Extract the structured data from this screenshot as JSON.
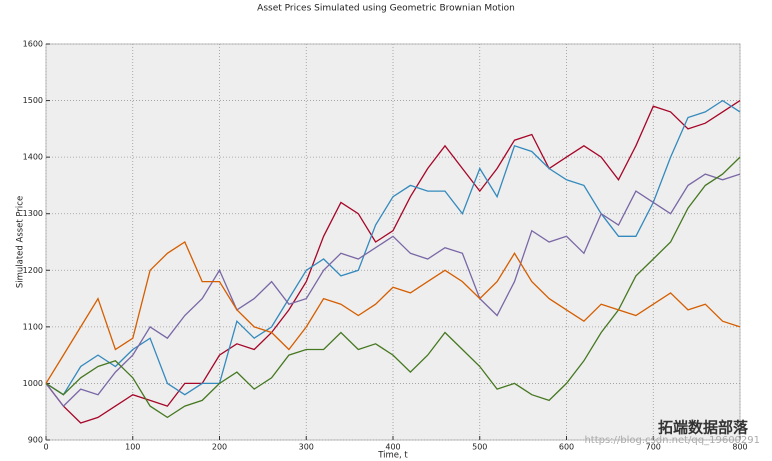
{
  "chart_data": {
    "type": "line",
    "title": "Asset Prices Simulated using Geometric Brownian Motion",
    "xlabel": "Time, t",
    "ylabel": "Simulated Asset Price",
    "annotations": [
      "https://blog.csdn.net/qq_19600291",
      "拓端数据部落"
    ],
    "x": [
      0,
      20,
      40,
      60,
      80,
      100,
      120,
      140,
      160,
      180,
      200,
      220,
      240,
      260,
      280,
      300,
      320,
      340,
      360,
      380,
      400,
      420,
      440,
      460,
      480,
      500,
      520,
      540,
      560,
      580,
      600,
      620,
      640,
      660,
      680,
      700,
      720,
      740,
      760,
      780,
      800
    ],
    "xlim": [
      0,
      800
    ],
    "xticks": [
      0,
      100,
      200,
      300,
      400,
      500,
      600,
      700,
      800
    ],
    "ylim": [
      900,
      1600
    ],
    "yticks": [
      900,
      1000,
      1100,
      1200,
      1300,
      1400,
      1500,
      1600
    ],
    "grid": true,
    "series": [
      {
        "color": "#a60628",
        "values": [
          1000,
          960,
          930,
          940,
          960,
          980,
          970,
          960,
          1000,
          1000,
          1050,
          1070,
          1060,
          1090,
          1130,
          1180,
          1260,
          1320,
          1300,
          1250,
          1270,
          1330,
          1380,
          1420,
          1380,
          1340,
          1380,
          1430,
          1440,
          1380,
          1400,
          1420,
          1400,
          1360,
          1420,
          1490,
          1480,
          1450,
          1460,
          1480,
          1500
        ]
      },
      {
        "color": "#348abd",
        "values": [
          1000,
          980,
          1030,
          1050,
          1030,
          1060,
          1080,
          1000,
          980,
          1000,
          1000,
          1110,
          1080,
          1100,
          1150,
          1200,
          1220,
          1190,
          1200,
          1280,
          1330,
          1350,
          1340,
          1340,
          1300,
          1380,
          1330,
          1420,
          1410,
          1380,
          1360,
          1350,
          1300,
          1260,
          1260,
          1320,
          1400,
          1470,
          1480,
          1500,
          1480
        ]
      },
      {
        "color": "#7a68a6",
        "values": [
          1000,
          960,
          990,
          980,
          1020,
          1050,
          1100,
          1080,
          1120,
          1150,
          1200,
          1130,
          1150,
          1180,
          1140,
          1150,
          1200,
          1230,
          1220,
          1240,
          1260,
          1230,
          1220,
          1240,
          1230,
          1150,
          1120,
          1180,
          1270,
          1250,
          1260,
          1230,
          1300,
          1280,
          1340,
          1320,
          1300,
          1350,
          1370,
          1360,
          1370
        ]
      },
      {
        "color": "#467821",
        "values": [
          1000,
          980,
          1010,
          1030,
          1040,
          1010,
          960,
          940,
          960,
          970,
          1000,
          1020,
          990,
          1010,
          1050,
          1060,
          1060,
          1090,
          1060,
          1070,
          1050,
          1020,
          1050,
          1090,
          1060,
          1030,
          990,
          1000,
          980,
          970,
          1000,
          1040,
          1090,
          1130,
          1190,
          1220,
          1250,
          1310,
          1350,
          1370,
          1400
        ]
      },
      {
        "color": "#d55e00",
        "values": [
          1000,
          1050,
          1100,
          1150,
          1060,
          1080,
          1200,
          1230,
          1250,
          1180,
          1180,
          1130,
          1100,
          1090,
          1060,
          1100,
          1150,
          1140,
          1120,
          1140,
          1170,
          1160,
          1180,
          1200,
          1180,
          1150,
          1180,
          1230,
          1180,
          1150,
          1130,
          1110,
          1140,
          1130,
          1120,
          1140,
          1160,
          1130,
          1140,
          1110,
          1100
        ]
      }
    ]
  }
}
